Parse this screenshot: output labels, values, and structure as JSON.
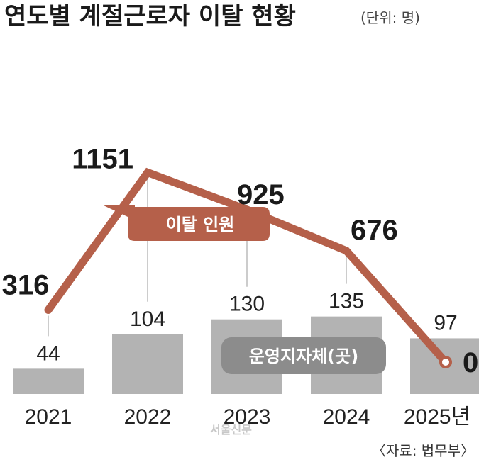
{
  "title": "연도별 계절근로자 이탈 현황",
  "unit": "(단위: 명)",
  "source": "〈자료: 법무부〉",
  "watermark": "서울신문",
  "colors": {
    "line": "#b5604a",
    "line_badge": "#b5604a",
    "bar": "#b3b3b3",
    "bar_badge": "#8c8c8c"
  },
  "chart_data": {
    "type": "bar",
    "categories": [
      "2021",
      "2022",
      "2023",
      "2024",
      "2025년"
    ],
    "series": [
      {
        "name": "운영지자체(곳)",
        "kind": "bar",
        "values": [
          44,
          104,
          130,
          135,
          97
        ]
      },
      {
        "name": "이탈 인원",
        "kind": "line",
        "values": [
          316,
          1151,
          925,
          676,
          0
        ]
      }
    ]
  }
}
